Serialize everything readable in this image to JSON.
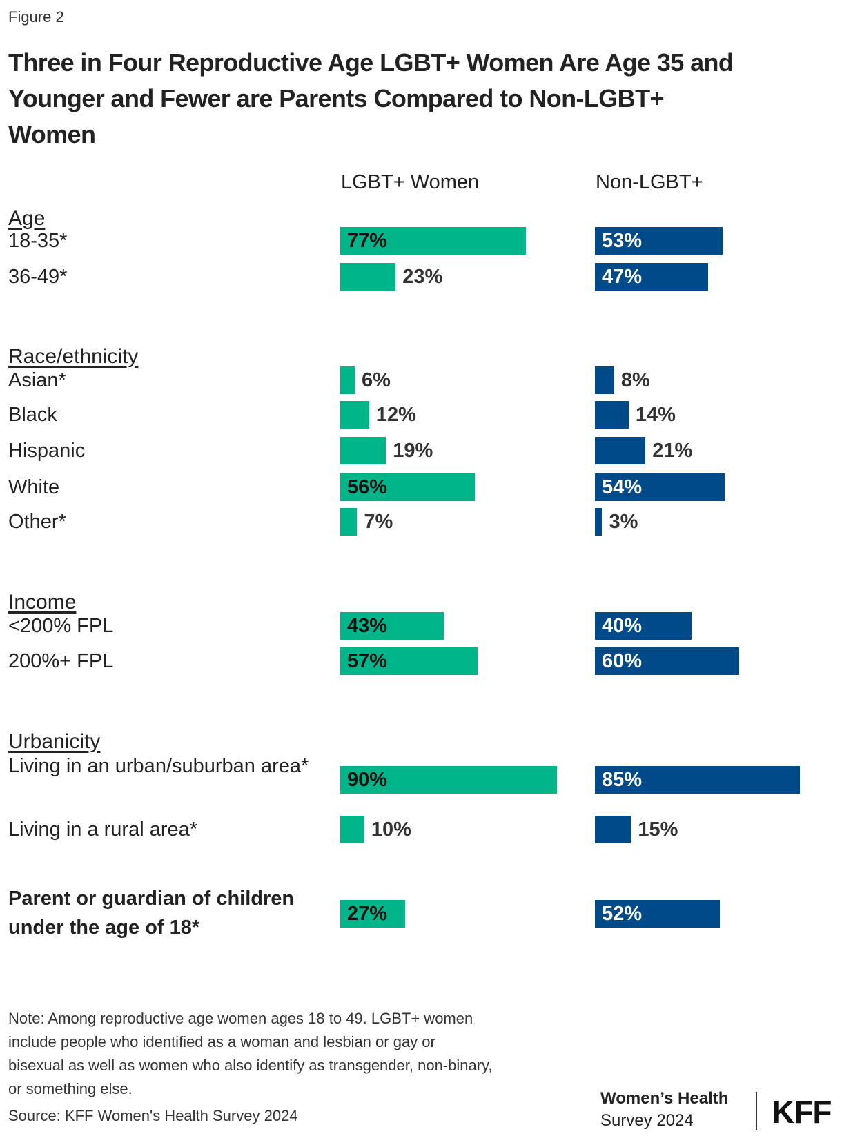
{
  "figure_label": "Figure 2",
  "title_lines": [
    "Three in Four Reproductive Age LGBT+ Women Are Age 35 and",
    "Younger and Fewer are Parents Compared to Non-LGBT+",
    "Women"
  ],
  "colors": {
    "lgbt": "#00b589",
    "non_lgbt": "#004a8a"
  },
  "chart_data": {
    "type": "bar",
    "orientation": "horizontal",
    "unit": "%",
    "series": [
      {
        "name": "LGBT+ Women",
        "color": "#00b589"
      },
      {
        "name": "Non-LGBT+",
        "color": "#004a8a"
      }
    ],
    "sections": [
      {
        "heading": "Age",
        "rows": [
          {
            "label": "18-35*",
            "values": [
              77,
              53
            ]
          },
          {
            "label": "36-49*",
            "values": [
              23,
              47
            ]
          }
        ]
      },
      {
        "heading": "Race/ethnicity",
        "rows": [
          {
            "label": "Asian*",
            "values": [
              6,
              8
            ]
          },
          {
            "label": "Black",
            "values": [
              12,
              14
            ]
          },
          {
            "label": "Hispanic",
            "values": [
              19,
              21
            ]
          },
          {
            "label": "White",
            "values": [
              56,
              54
            ]
          },
          {
            "label": "Other*",
            "values": [
              7,
              3
            ]
          }
        ]
      },
      {
        "heading": "Income",
        "rows": [
          {
            "label": "<200% FPL",
            "values": [
              43,
              40
            ]
          },
          {
            "label": "200%+ FPL",
            "values": [
              57,
              60
            ]
          }
        ]
      },
      {
        "heading": "Urbanicity",
        "rows": [
          {
            "label": "Living in an urban/suburban area*",
            "values": [
              90,
              85
            ]
          },
          {
            "label": "Living in a rural area*",
            "values": [
              10,
              15
            ]
          }
        ]
      },
      {
        "heading": "",
        "rows": [
          {
            "label": "Parent or guardian of children under the age of 18*",
            "values": [
              27,
              52
            ],
            "bold": true
          }
        ]
      }
    ]
  },
  "note_lines": [
    "Note: Among reproductive age women ages 18 to 49. LGBT+ women",
    "include people who identified as a woman and lesbian or gay or",
    "bisexual as well as women who also identify as transgender, non-binary,",
    "or something else."
  ],
  "source": "Source: KFF Women's Health Survey 2024",
  "logo": {
    "line1": "Women’s Health",
    "line2": "Survey 2024",
    "brand": "KFF"
  }
}
